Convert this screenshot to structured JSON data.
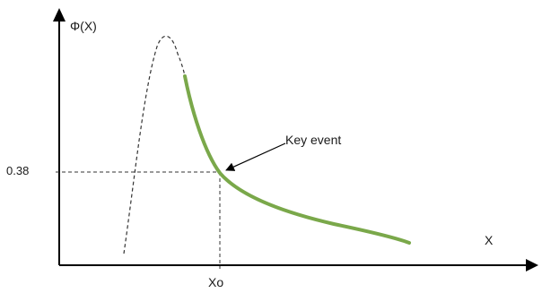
{
  "diagram": {
    "y_axis_label": "Φ(X)",
    "x_axis_label": "X",
    "y_marker_label": "0.38",
    "x_marker_label": "Xo",
    "annotation": "Key event",
    "colors": {
      "axes": "#000000",
      "solid_curve": "#7aa84a",
      "dashed_curve": "#333333",
      "guides": "#333333"
    }
  }
}
